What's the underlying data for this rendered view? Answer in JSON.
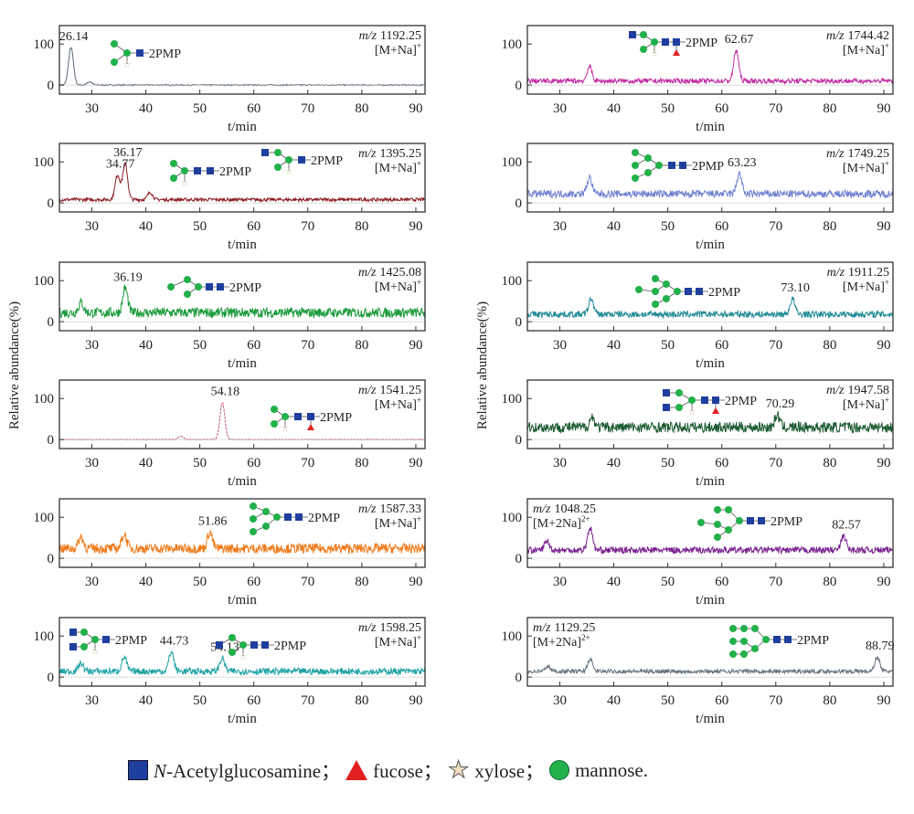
{
  "y_axis_label": "Relative abundance(%)",
  "legend": {
    "items": [
      {
        "icon": "blue-square-icon",
        "prefix": "N",
        "label": "-Acetylglucosamine；",
        "color": "#1f3f9f"
      },
      {
        "icon": "red-triangle-icon",
        "label": "fucose；",
        "color": "#e02020"
      },
      {
        "icon": "star-icon",
        "label": "xylose；",
        "color": "#f2dcc0"
      },
      {
        "icon": "green-circle-icon",
        "label": "mannose.",
        "color": "#22b04a"
      }
    ]
  },
  "chart_data": [
    {
      "type": "line",
      "column": "left",
      "mz_prefix": "m/z",
      "mz": "1192.25",
      "ion": "[M+Na]",
      "charge": "+",
      "color": "#5a6a7a",
      "baseline": 0,
      "noise": 1.5,
      "peaks": [
        {
          "t": 26.14,
          "y": 92,
          "label": "26.14"
        },
        {
          "t": 29.6,
          "y": 8
        }
      ],
      "glycan_label": "2PMP",
      "xlabel": "t/min",
      "xticks": [
        30,
        40,
        50,
        60,
        70,
        80,
        90
      ],
      "yticks": [
        0,
        100
      ],
      "xlim": [
        24,
        91.7
      ]
    },
    {
      "type": "line",
      "column": "left",
      "mz_prefix": "m/z",
      "mz": "1395.25",
      "ion": "[M+Na]",
      "charge": "+",
      "color": "#8b1a22",
      "baseline": 8,
      "noise": 4,
      "peaks": [
        {
          "t": 34.77,
          "y": 60,
          "label": "34.77"
        },
        {
          "t": 36.17,
          "y": 88,
          "label": "36.17"
        },
        {
          "t": 40.8,
          "y": 18
        }
      ],
      "glycan_label": "2PMP",
      "xlabel": "t/min",
      "xticks": [
        30,
        40,
        50,
        60,
        70,
        80,
        90
      ],
      "yticks": [
        0,
        100
      ],
      "xlim": [
        24,
        91.7
      ]
    },
    {
      "type": "line",
      "column": "left",
      "mz_prefix": "m/z",
      "mz": "1425.08",
      "ion": "[M+Na]",
      "charge": "+",
      "color": "#1a9a3a",
      "baseline": 22,
      "noise": 12,
      "peaks": [
        {
          "t": 36.19,
          "y": 60,
          "label": "36.19"
        },
        {
          "t": 28,
          "y": 25
        }
      ],
      "glycan_label": "2PMP",
      "xlabel": "t/min",
      "xticks": [
        30,
        40,
        50,
        60,
        70,
        80,
        90
      ],
      "yticks": [
        0,
        100
      ],
      "xlim": [
        24,
        91.7
      ]
    },
    {
      "type": "line",
      "column": "left",
      "mz_prefix": "m/z",
      "mz": "1541.25",
      "ion": "[M+Na]",
      "charge": "+",
      "color": "#c05a70",
      "baseline": 0,
      "noise": 0.8,
      "peaks": [
        {
          "t": 54.18,
          "y": 90,
          "label": "54.18"
        },
        {
          "t": 46.5,
          "y": 8
        }
      ],
      "glycan_label": "2PMP",
      "xlabel": "t/min",
      "xticks": [
        30,
        40,
        50,
        60,
        70,
        80,
        90
      ],
      "yticks": [
        0,
        100
      ],
      "xlim": [
        24,
        91.7
      ]
    },
    {
      "type": "line",
      "column": "left",
      "mz_prefix": "m/z",
      "mz": "1587.33",
      "ion": "[M+Na]",
      "charge": "+",
      "color": "#f07a1a",
      "baseline": 24,
      "noise": 12,
      "peaks": [
        {
          "t": 51.86,
          "y": 40,
          "label": "51.86"
        },
        {
          "t": 36,
          "y": 35
        },
        {
          "t": 28,
          "y": 28
        }
      ],
      "glycan_label": "2PMP",
      "xlabel": "t/min",
      "xticks": [
        30,
        40,
        50,
        60,
        70,
        80,
        90
      ],
      "yticks": [
        0,
        100
      ],
      "xlim": [
        24,
        91.7
      ]
    },
    {
      "type": "line",
      "column": "left",
      "mz_prefix": "m/z",
      "mz": "1598.25",
      "ion": "[M+Na]",
      "charge": "+",
      "color": "#1fa3a3",
      "baseline": 14,
      "noise": 8,
      "peaks": [
        {
          "t": 44.73,
          "y": 48,
          "label": "44.73"
        },
        {
          "t": 54.13,
          "y": 32,
          "label": "54.13"
        },
        {
          "t": 36,
          "y": 35
        },
        {
          "t": 28,
          "y": 20
        }
      ],
      "glycan_label": "2PMP",
      "xlabel": "t/min",
      "xticks": [
        30,
        40,
        50,
        60,
        70,
        80,
        90
      ],
      "yticks": [
        0,
        100
      ],
      "xlim": [
        24,
        91.7
      ]
    },
    {
      "type": "line",
      "column": "right",
      "mz_prefix": "m/z",
      "mz": "1744.42",
      "ion": "[M+Na]",
      "charge": "+",
      "color": "#c02aa0",
      "baseline": 10,
      "noise": 6,
      "peaks": [
        {
          "t": 62.67,
          "y": 75,
          "label": "62.67"
        },
        {
          "t": 35.5,
          "y": 35
        }
      ],
      "glycan_label": "2PMP",
      "xlabel": "t/min",
      "xticks": [
        30,
        40,
        50,
        60,
        70,
        80,
        90
      ],
      "yticks": [
        0,
        100
      ],
      "xlim": [
        24,
        91.7
      ]
    },
    {
      "type": "line",
      "column": "right",
      "mz_prefix": "m/z",
      "mz": "1749.25",
      "ion": "[M+Na]",
      "charge": "+",
      "color": "#7080d0",
      "baseline": 22,
      "noise": 9,
      "peaks": [
        {
          "t": 63.23,
          "y": 50,
          "label": "63.23"
        },
        {
          "t": 35.5,
          "y": 40
        }
      ],
      "glycan_label": "2PMP",
      "xlabel": "t/min",
      "xticks": [
        30,
        40,
        50,
        60,
        70,
        80,
        90
      ],
      "yticks": [
        0,
        100
      ],
      "xlim": [
        24,
        91.7
      ]
    },
    {
      "type": "line",
      "column": "right",
      "mz_prefix": "m/z",
      "mz": "1911.25",
      "ion": "[M+Na]",
      "charge": "+",
      "color": "#1f8a95",
      "baseline": 18,
      "noise": 8,
      "peaks": [
        {
          "t": 73.1,
          "y": 38,
          "label": "73.10"
        },
        {
          "t": 35.8,
          "y": 38
        }
      ],
      "glycan_label": "2PMP",
      "xlabel": "t/min",
      "xticks": [
        30,
        40,
        50,
        60,
        70,
        80,
        90
      ],
      "yticks": [
        0,
        100
      ],
      "xlim": [
        24,
        91.7
      ]
    },
    {
      "type": "line",
      "column": "right",
      "mz_prefix": "m/z",
      "mz": "1947.58",
      "ion": "[M+Na]",
      "charge": "+",
      "color": "#1a5a30",
      "baseline": 30,
      "noise": 13,
      "peaks": [
        {
          "t": 70.29,
          "y": 30,
          "label": "70.29"
        },
        {
          "t": 36,
          "y": 25
        }
      ],
      "glycan_label": "2PMP",
      "xlabel": "t/min",
      "xticks": [
        30,
        40,
        50,
        60,
        70,
        80,
        90
      ],
      "yticks": [
        0,
        100
      ],
      "xlim": [
        24,
        91.7
      ]
    },
    {
      "type": "line",
      "column": "right",
      "mz_prefix": "m/z",
      "mz": "1048.25",
      "ion": "[M+2Na]",
      "charge": "2+",
      "color": "#7a2090",
      "baseline": 20,
      "noise": 8,
      "peaks": [
        {
          "t": 82.57,
          "y": 35,
          "label": "82.57"
        },
        {
          "t": 35.6,
          "y": 55
        },
        {
          "t": 27.6,
          "y": 22
        }
      ],
      "glycan_label": "2PMP",
      "xlabel": "t/min",
      "xticks": [
        30,
        40,
        50,
        60,
        70,
        80,
        90
      ],
      "yticks": [
        0,
        100
      ],
      "xlim": [
        24,
        91.7
      ]
    },
    {
      "type": "line",
      "column": "right",
      "mz_prefix": "m/z",
      "mz": "1129.25",
      "ion": "[M+2Na]",
      "charge": "2+",
      "color": "#65727e",
      "baseline": 14,
      "noise": 5,
      "peaks": [
        {
          "t": 88.79,
          "y": 35,
          "label": "88.79"
        },
        {
          "t": 35.6,
          "y": 30
        },
        {
          "t": 27.8,
          "y": 12
        }
      ],
      "glycan_label": "2PMP",
      "xlabel": "t/min",
      "xticks": [
        30,
        40,
        50,
        60,
        70,
        80,
        90
      ],
      "yticks": [
        0,
        100
      ],
      "xlim": [
        24,
        91.7
      ]
    }
  ]
}
